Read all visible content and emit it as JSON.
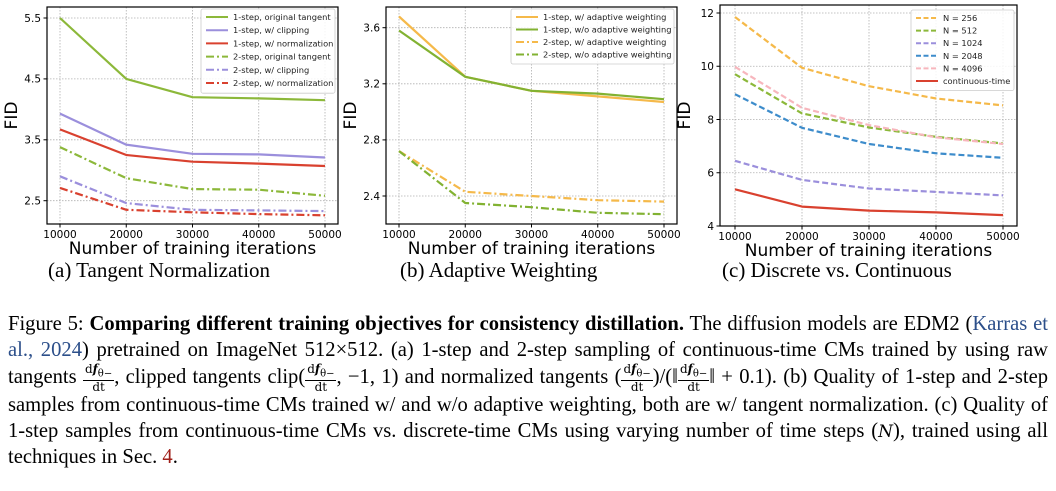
{
  "chart_data": [
    {
      "id": "a",
      "type": "line",
      "title": "",
      "subcaption": "(a) Tangent Normalization",
      "xlabel": "Number of training iterations",
      "ylabel": "FID",
      "x": [
        10000,
        20000,
        30000,
        40000,
        50000
      ],
      "xticks": [
        "10000",
        "20000",
        "30000",
        "40000",
        "50000"
      ],
      "yticks": [
        2.5,
        3.5,
        4.5,
        5.5
      ],
      "ytick_labels": [
        "2.5",
        "3.5",
        "4.5",
        "5.5"
      ],
      "ylim": [
        2.12,
        5.67
      ],
      "grid": true,
      "legend_position": "top-right",
      "series": [
        {
          "name": "1-step, original tangent",
          "color": "#8cb83a",
          "style": "solid",
          "values": [
            5.5,
            4.5,
            4.2,
            4.18,
            4.15
          ]
        },
        {
          "name": "1-step, w/ clipping",
          "color": "#9b8fdc",
          "style": "solid",
          "values": [
            3.93,
            3.42,
            3.27,
            3.26,
            3.21
          ]
        },
        {
          "name": "1-step, w/ normalization",
          "color": "#d9412f",
          "style": "solid",
          "values": [
            3.67,
            3.25,
            3.14,
            3.11,
            3.07
          ]
        },
        {
          "name": "2-step, original tangent",
          "color": "#8cb83a",
          "style": "dashdot",
          "values": [
            3.38,
            2.87,
            2.69,
            2.68,
            2.58
          ]
        },
        {
          "name": "2-step, w/ clipping",
          "color": "#9b8fdc",
          "style": "dashdot",
          "values": [
            2.9,
            2.46,
            2.35,
            2.34,
            2.33
          ]
        },
        {
          "name": "2-step, w/ normalization",
          "color": "#d9412f",
          "style": "dashdot",
          "values": [
            2.71,
            2.35,
            2.31,
            2.28,
            2.26
          ]
        }
      ]
    },
    {
      "id": "b",
      "type": "line",
      "title": "",
      "subcaption": "(b) Adaptive Weighting",
      "xlabel": "Number of training iterations",
      "ylabel": "FID",
      "x": [
        10000,
        20000,
        30000,
        40000,
        50000
      ],
      "xticks": [
        "10000",
        "20000",
        "30000",
        "40000",
        "50000"
      ],
      "yticks": [
        2.4,
        2.8,
        3.2,
        3.6
      ],
      "ytick_labels": [
        "2.4",
        "2.8",
        "3.2",
        "3.6"
      ],
      "ylim": [
        2.205,
        3.745
      ],
      "grid": true,
      "legend_position": "top-right",
      "series": [
        {
          "name": "1-step, w/ adaptive weighting",
          "color": "#f5b94a",
          "style": "solid",
          "values": [
            3.68,
            3.25,
            3.15,
            3.11,
            3.07
          ]
        },
        {
          "name": "1-step, w/o adaptive weighting",
          "color": "#82b232",
          "style": "solid",
          "values": [
            3.58,
            3.25,
            3.15,
            3.13,
            3.09
          ]
        },
        {
          "name": "2-step, w/ adaptive weighting",
          "color": "#f5b94a",
          "style": "dashdot",
          "values": [
            2.72,
            2.43,
            2.4,
            2.37,
            2.36
          ]
        },
        {
          "name": "2-step, w/o adaptive weighting",
          "color": "#82b232",
          "style": "dashdot",
          "values": [
            2.72,
            2.35,
            2.32,
            2.28,
            2.27
          ]
        }
      ]
    },
    {
      "id": "c",
      "type": "line",
      "title": "",
      "subcaption": "(c) Discrete vs. Continuous",
      "xlabel": "Number of training iterations",
      "ylabel": "FID",
      "x": [
        10000,
        20000,
        30000,
        40000,
        50000
      ],
      "xticks": [
        "10000",
        "20000",
        "30000",
        "40000",
        "50000"
      ],
      "yticks": [
        4,
        6,
        8,
        10,
        12
      ],
      "ytick_labels": [
        "4",
        "6",
        "8",
        "10",
        "12"
      ],
      "ylim": [
        4.0,
        12.1
      ],
      "grid": true,
      "legend_position": "top-right",
      "series": [
        {
          "name": "N = 256",
          "color": "#f5b94a",
          "style": "dashed",
          "values": [
            11.85,
            9.94,
            9.25,
            8.79,
            8.53
          ]
        },
        {
          "name": "N = 512",
          "color": "#8cb83a",
          "style": "dashed",
          "values": [
            9.7,
            8.23,
            7.7,
            7.35,
            7.1
          ]
        },
        {
          "name": "N = 1024",
          "color": "#9b8fdc",
          "style": "dashed",
          "values": [
            6.45,
            5.73,
            5.41,
            5.28,
            5.15
          ]
        },
        {
          "name": "N = 2048",
          "color": "#3d8ccb",
          "style": "dashed",
          "values": [
            8.95,
            7.69,
            7.08,
            6.73,
            6.56
          ]
        },
        {
          "name": "N = 4096",
          "color": "#f7b6bd",
          "style": "dashed",
          "values": [
            9.98,
            8.44,
            7.79,
            7.33,
            7.08
          ]
        },
        {
          "name": "continuous-time",
          "color": "#d9412f",
          "style": "solid",
          "values": [
            5.38,
            4.73,
            4.58,
            4.51,
            4.41
          ]
        }
      ]
    }
  ],
  "caption": {
    "label": "Figure 5:",
    "bold": "Comparing different training objectives for consistency distillation.",
    "s1": "The diffusion models are EDM2 (",
    "cite": "Karras et al., 2024",
    "s2": ") pretrained on ImageNet 512×512. (a) 1-step and 2-step sampling of continuous-time CMs trained by using raw tangents",
    "s3": ", clipped tangents clip(",
    "s4": ", −1, 1) and normalized tangents (",
    "s5": ")/(‖",
    "s6": "‖ + 0.1). (b) Quality of 1-step and 2-step samples from continuous-time CMs trained w/ and w/o adaptive weighting, both are w/ tangent normalization. (c) Quality of 1-step samples from continuous-time CMs vs. discrete-time CMs using varying number of time steps (",
    "n_var": "N",
    "s7": "), trained using all techniques in Sec. ",
    "sec_ref": "4",
    "s8": ".",
    "frac_num_d": "d",
    "frac_num_f": "f",
    "frac_num_sub": "θ−",
    "frac_den": "dt"
  }
}
